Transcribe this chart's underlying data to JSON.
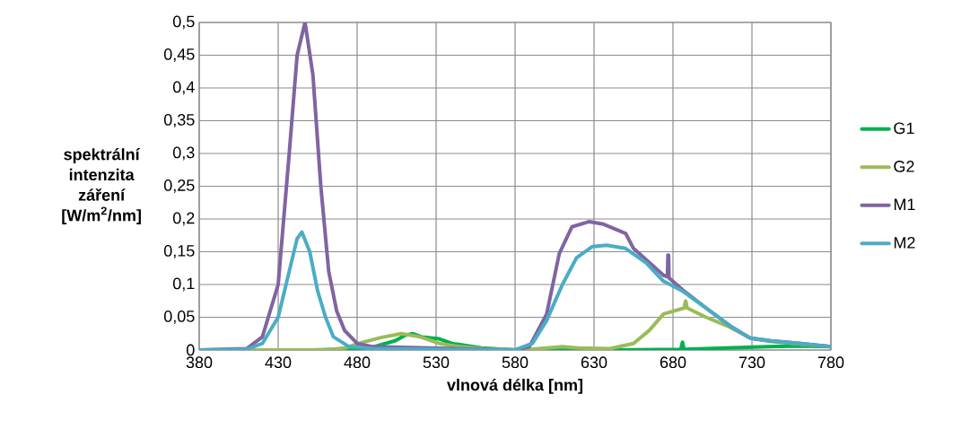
{
  "chart_data": {
    "type": "line",
    "xlabel": "vlnová délka [nm]",
    "ylabel": "spektrální intenzita záření [W/m$^{2}$/nm]",
    "xlim": [
      380,
      780
    ],
    "xticks": [
      380,
      430,
      480,
      530,
      580,
      630,
      680,
      730,
      780
    ],
    "ylim": [
      0,
      0.5
    ],
    "yticks": [
      {
        "value": 0,
        "label": "0"
      },
      {
        "value": 0.05,
        "label": "0,05"
      },
      {
        "value": 0.1,
        "label": "0,1"
      },
      {
        "value": 0.15,
        "label": "0,15"
      },
      {
        "value": 0.2,
        "label": "0,2"
      },
      {
        "value": 0.25,
        "label": "0,25"
      },
      {
        "value": 0.3,
        "label": "0,3"
      },
      {
        "value": 0.35,
        "label": "0,35"
      },
      {
        "value": 0.4,
        "label": "0,4"
      },
      {
        "value": 0.45,
        "label": "0,45"
      },
      {
        "value": 0.5,
        "label": "0,5"
      }
    ],
    "grid": true,
    "legend": "right",
    "marker": "none",
    "line_style": "solid",
    "series": [
      {
        "name": "G1",
        "color": "#00b050",
        "x": [
          380,
          450,
          487,
          495,
          504,
          510,
          515,
          521,
          532,
          540,
          559,
          580,
          640,
          685,
          686,
          687,
          700,
          740,
          760,
          780
        ],
        "values": [
          0,
          0,
          0.002,
          0.008,
          0.014,
          0.022,
          0.025,
          0.02,
          0.017,
          0.01,
          0.003,
          0,
          0,
          0.001,
          0.012,
          0.001,
          0.002,
          0.005,
          0.006,
          0.005
        ]
      },
      {
        "name": "G2",
        "color": "#9bbb59",
        "x": [
          380,
          460,
          472,
          481,
          495,
          508,
          520,
          532,
          545,
          560,
          585,
          600,
          610,
          620,
          640,
          655,
          665,
          674,
          687,
          688,
          689,
          701,
          716,
          729,
          742,
          761,
          780
        ],
        "values": [
          0,
          0,
          0.003,
          0.01,
          0.019,
          0.025,
          0.02,
          0.01,
          0.005,
          0.002,
          0,
          0.003,
          0.005,
          0.003,
          0.002,
          0.01,
          0.03,
          0.055,
          0.064,
          0.075,
          0.064,
          0.05,
          0.035,
          0.018,
          0.013,
          0.009,
          0.005
        ]
      },
      {
        "name": "M1",
        "color": "#8064a2",
        "x": [
          380,
          410,
          420,
          430,
          437,
          442,
          447,
          452,
          457,
          462,
          467,
          472,
          480,
          490,
          580,
          589,
          600,
          608,
          616,
          627,
          636,
          650,
          655,
          674,
          676.5,
          676.8,
          677.2,
          677.5,
          686,
          701,
          716,
          729,
          742,
          761,
          780
        ],
        "values": [
          0,
          0.002,
          0.02,
          0.1,
          0.3,
          0.45,
          0.5,
          0.42,
          0.25,
          0.12,
          0.06,
          0.03,
          0.01,
          0.005,
          0,
          0.005,
          0.055,
          0.147,
          0.188,
          0.196,
          0.192,
          0.178,
          0.155,
          0.114,
          0.112,
          0.145,
          0.145,
          0.11,
          0.092,
          0.064,
          0.037,
          0.018,
          0.014,
          0.01,
          0.005
        ]
      },
      {
        "name": "M2",
        "color": "#4bacc6",
        "x": [
          380,
          410,
          420,
          430,
          437,
          442,
          445,
          450,
          455,
          460,
          465,
          475,
          490,
          580,
          591,
          600,
          610,
          619,
          629,
          638,
          650,
          663,
          674,
          686,
          701,
          716,
          729,
          742,
          761,
          780
        ],
        "values": [
          0,
          0.001,
          0.01,
          0.05,
          0.12,
          0.17,
          0.18,
          0.15,
          0.09,
          0.05,
          0.02,
          0.005,
          0.002,
          0,
          0.01,
          0.045,
          0.1,
          0.141,
          0.158,
          0.16,
          0.155,
          0.133,
          0.105,
          0.09,
          0.064,
          0.037,
          0.018,
          0.014,
          0.01,
          0.005
        ]
      }
    ]
  }
}
